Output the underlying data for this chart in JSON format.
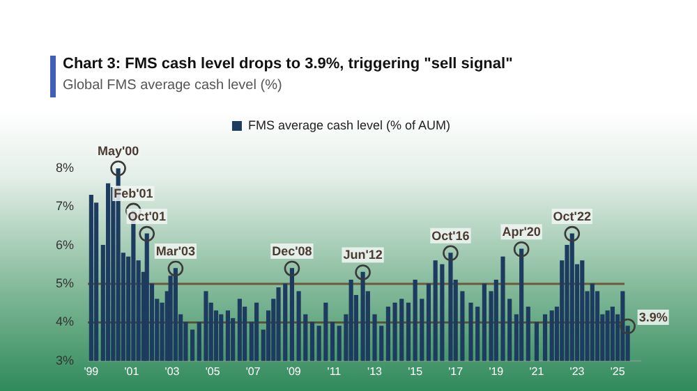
{
  "chart_data": {
    "type": "bar",
    "title": "Chart 3: FMS cash level drops to 3.9%, triggering \"sell signal\"",
    "subtitle": "Global FMS average cash level (%)",
    "x": [
      "1999-01",
      "1999-04",
      "1999-08",
      "1999-11",
      "2000-02",
      "2000-05",
      "2000-08",
      "2000-11",
      "2001-02",
      "2001-05",
      "2001-08",
      "2001-10",
      "2002-01",
      "2002-04",
      "2002-07",
      "2002-10",
      "2002-12",
      "2003-03",
      "2003-06",
      "2003-09",
      "2004-01",
      "2004-05",
      "2004-09",
      "2004-12",
      "2005-03",
      "2005-06",
      "2005-10",
      "2006-01",
      "2006-05",
      "2006-08",
      "2006-12",
      "2007-03",
      "2007-07",
      "2007-10",
      "2008-01",
      "2008-04",
      "2008-08",
      "2008-12",
      "2009-04",
      "2009-08",
      "2009-12",
      "2010-04",
      "2010-08",
      "2010-12",
      "2011-04",
      "2011-08",
      "2011-11",
      "2012-02",
      "2012-06",
      "2012-09",
      "2013-01",
      "2013-05",
      "2013-09",
      "2014-01",
      "2014-05",
      "2014-09",
      "2015-01",
      "2015-05",
      "2015-09",
      "2016-01",
      "2016-05",
      "2016-10",
      "2017-01",
      "2017-05",
      "2017-10",
      "2018-02",
      "2018-06",
      "2018-10",
      "2019-01",
      "2019-05",
      "2019-09",
      "2020-01",
      "2020-04",
      "2020-08",
      "2021-01",
      "2021-06",
      "2021-10",
      "2022-01",
      "2022-04",
      "2022-07",
      "2022-10",
      "2023-01",
      "2023-04",
      "2023-07",
      "2023-10",
      "2024-01",
      "2024-04",
      "2024-07",
      "2024-10",
      "2025-01",
      "2025-04",
      "2025-07"
    ],
    "series": [
      {
        "name": "FMS average cash level (% of AUM)",
        "color": "#1d3b5e",
        "values": [
          7.3,
          7.1,
          6.0,
          7.6,
          7.5,
          8.0,
          5.8,
          5.7,
          6.9,
          5.6,
          5.3,
          6.3,
          5.0,
          4.6,
          4.5,
          4.8,
          5.2,
          5.4,
          4.2,
          4.0,
          3.8,
          4.0,
          4.8,
          4.5,
          4.3,
          4.2,
          4.3,
          4.1,
          4.6,
          4.4,
          4.0,
          4.5,
          3.8,
          4.3,
          4.6,
          4.9,
          5.0,
          5.4,
          4.8,
          4.2,
          4.0,
          3.9,
          4.5,
          4.0,
          3.9,
          4.2,
          5.1,
          4.7,
          5.3,
          4.8,
          4.2,
          3.9,
          4.4,
          4.5,
          4.6,
          4.5,
          5.1,
          4.6,
          5.0,
          5.6,
          5.5,
          5.8,
          5.1,
          4.8,
          4.5,
          4.4,
          5.0,
          4.8,
          5.1,
          5.7,
          4.6,
          4.2,
          5.9,
          4.4,
          4.0,
          4.2,
          4.3,
          4.4,
          5.6,
          6.0,
          6.3,
          5.5,
          5.6,
          4.8,
          5.0,
          4.8,
          4.2,
          4.3,
          4.4,
          4.2,
          4.8,
          3.9
        ]
      }
    ],
    "xlim": [
      "1998-11",
      "2026-03"
    ],
    "xticks": [
      {
        "value": "1999",
        "label": "'99"
      },
      {
        "value": "2001",
        "label": "'01"
      },
      {
        "value": "2003",
        "label": "'03"
      },
      {
        "value": "2005",
        "label": "'05"
      },
      {
        "value": "2007",
        "label": "'07"
      },
      {
        "value": "2009",
        "label": "'09"
      },
      {
        "value": "2011",
        "label": "'11"
      },
      {
        "value": "2013",
        "label": "'13"
      },
      {
        "value": "2015",
        "label": "'15"
      },
      {
        "value": "2017",
        "label": "'17"
      },
      {
        "value": "2019",
        "label": "'19"
      },
      {
        "value": "2021",
        "label": "'21"
      },
      {
        "value": "2023",
        "label": "'23"
      },
      {
        "value": "2025",
        "label": "'25"
      }
    ],
    "ylim": [
      3,
      8
    ],
    "yticks": [
      {
        "value": 3,
        "label": "3%"
      },
      {
        "value": 4,
        "label": "4%"
      },
      {
        "value": 5,
        "label": "5%"
      },
      {
        "value": 6,
        "label": "6%"
      },
      {
        "value": 7,
        "label": "7%"
      },
      {
        "value": 8,
        "label": "8%"
      }
    ],
    "ref_lines": [
      {
        "axis": "y",
        "value": 5,
        "color": "#6b5a3a"
      },
      {
        "axis": "y",
        "value": 4,
        "color": "#5a5238"
      }
    ],
    "annotations": [
      {
        "text": "May'00",
        "x": "2000-05",
        "y": 8.0
      },
      {
        "text": "Feb'01",
        "x": "2001-02",
        "y": 6.9
      },
      {
        "text": "Oct'01",
        "x": "2001-10",
        "y": 6.3
      },
      {
        "text": "Mar'03",
        "x": "2003-03",
        "y": 5.4
      },
      {
        "text": "Dec'08",
        "x": "2008-12",
        "y": 5.4
      },
      {
        "text": "Jun'12",
        "x": "2012-06",
        "y": 5.3
      },
      {
        "text": "Oct'16",
        "x": "2016-10",
        "y": 5.8
      },
      {
        "text": "Apr'20",
        "x": "2020-04",
        "y": 5.9
      },
      {
        "text": "Oct'22",
        "x": "2022-10",
        "y": 6.3
      },
      {
        "text": "3.9%",
        "x": "2025-07",
        "y": 3.9
      }
    ],
    "legend": "top",
    "grid": false
  }
}
